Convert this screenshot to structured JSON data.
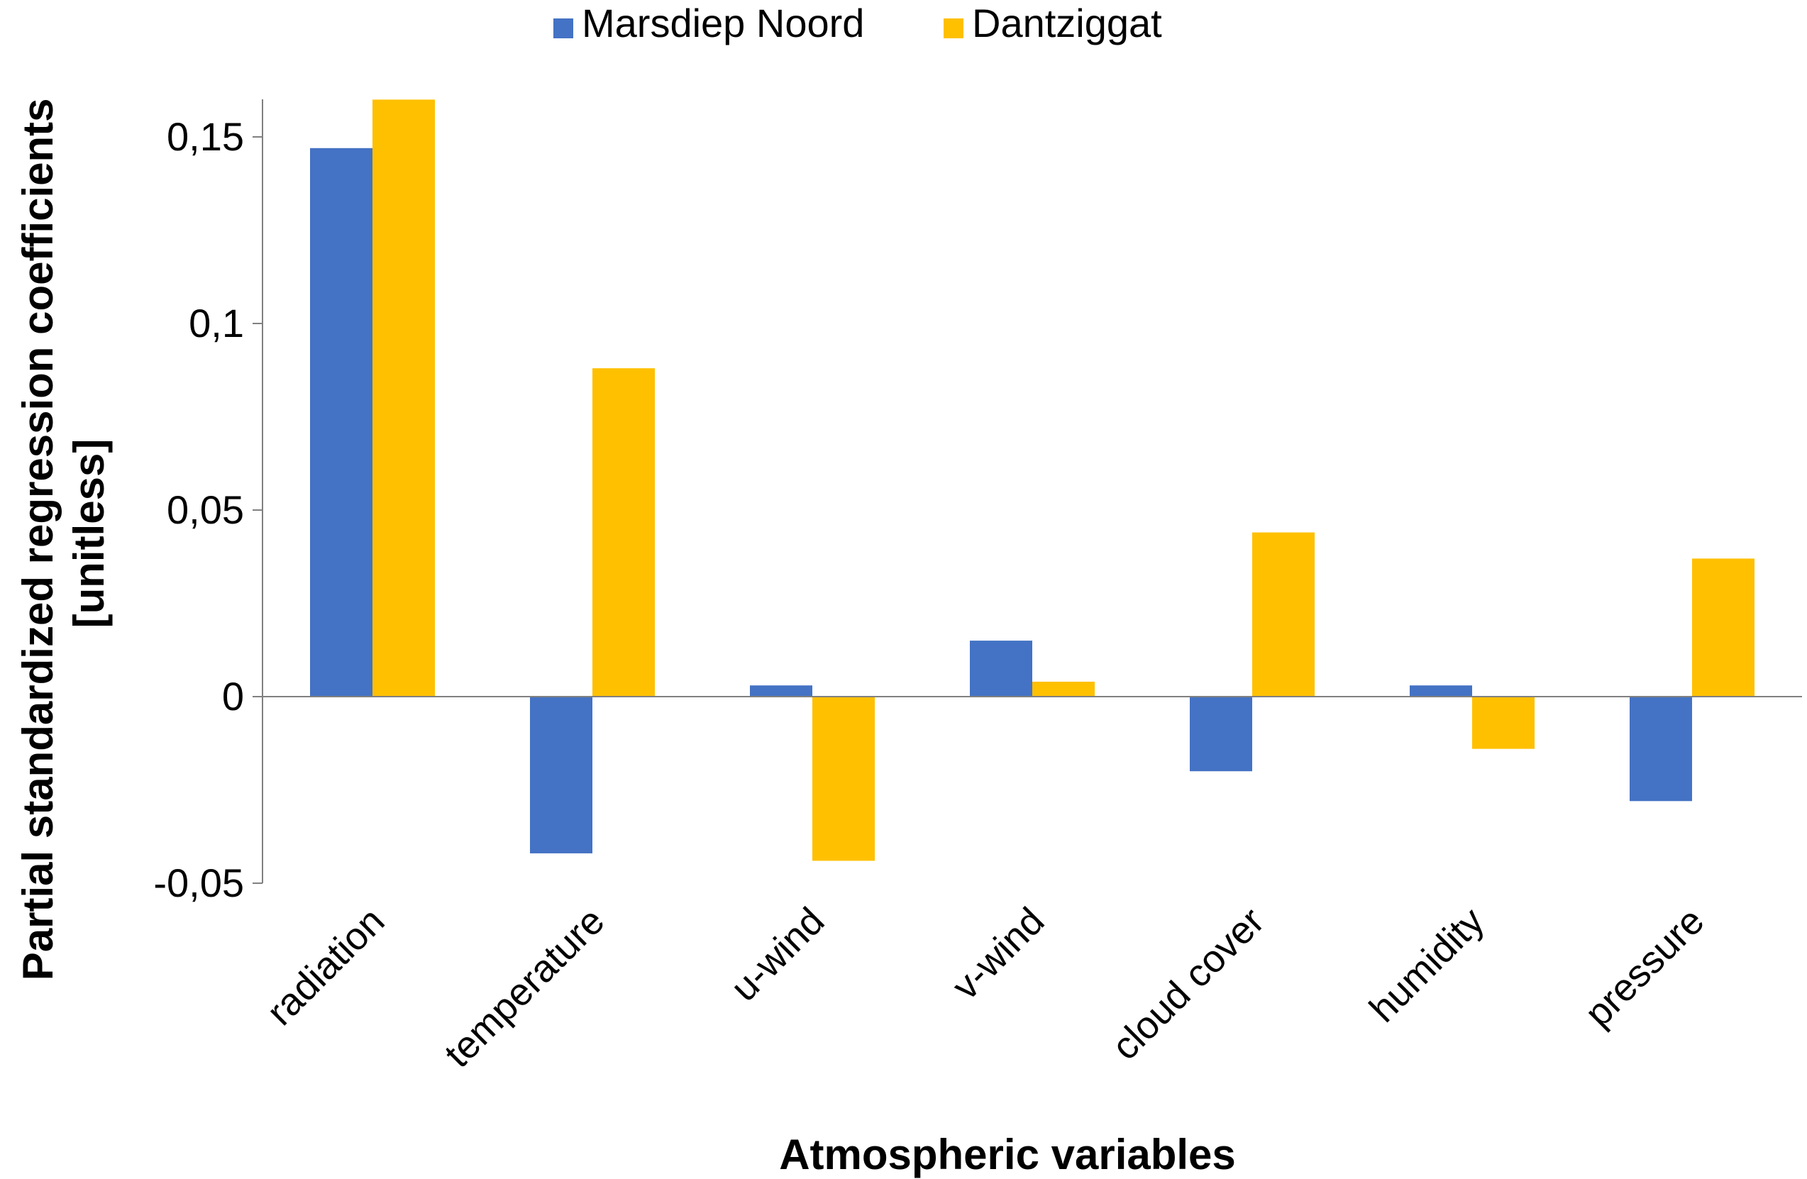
{
  "chart_data": {
    "type": "bar",
    "title": "",
    "xlabel": "Atmospheric variables",
    "ylabel_lines": [
      "Partial standardized regression coefficients",
      "[unitless]"
    ],
    "categories": [
      "radiation",
      "temperature",
      "u-wind",
      "v-wind",
      "cloud cover",
      "humidity",
      "pressure"
    ],
    "series": [
      {
        "name": "Marsdiep Noord",
        "color": "#4472C4",
        "values": [
          0.147,
          -0.042,
          0.003,
          0.015,
          -0.02,
          0.003,
          -0.028
        ]
      },
      {
        "name": "Dantziggat",
        "color": "#FFC000",
        "values": [
          0.16,
          0.088,
          -0.044,
          0.004,
          0.044,
          -0.014,
          0.037
        ]
      }
    ],
    "yticks": [
      {
        "value": -0.05,
        "label": "-0,05"
      },
      {
        "value": 0,
        "label": "0"
      },
      {
        "value": 0.05,
        "label": "0,05"
      },
      {
        "value": 0.1,
        "label": "0,1"
      },
      {
        "value": 0.15,
        "label": "0,15"
      }
    ],
    "ylim": [
      -0.05,
      0.16
    ],
    "legend_position": "top-center",
    "grid": false,
    "axis_color": "#808080"
  }
}
